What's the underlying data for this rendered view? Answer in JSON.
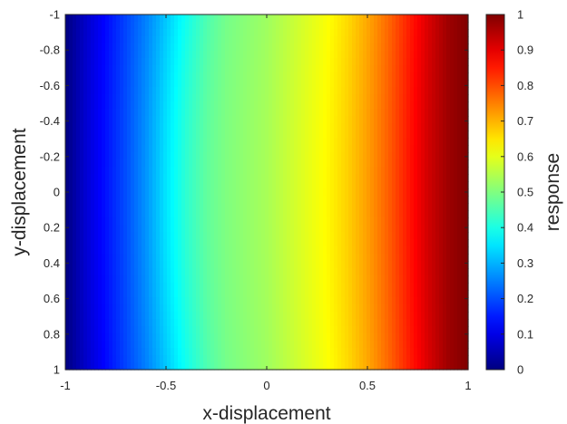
{
  "chart_data": {
    "type": "heatmap",
    "title": "",
    "xlabel": "x-displacement",
    "ylabel": "y-displacement",
    "colorbar_label": "response",
    "xlim": [
      -1,
      1
    ],
    "ylim": [
      -1,
      1
    ],
    "y_axis_direction": "reversed",
    "colormap": "jet",
    "clim": [
      0,
      1
    ],
    "x_ticks": [
      "-1",
      "-0.5",
      "0",
      "0.5",
      "1"
    ],
    "y_ticks": [
      "-1",
      "-0.8",
      "-0.6",
      "-0.4",
      "-0.2",
      "0",
      "0.2",
      "0.4",
      "0.6",
      "0.8",
      "1"
    ],
    "colorbar_ticks": [
      "0",
      "0.1",
      "0.2",
      "0.3",
      "0.4",
      "0.5",
      "0.6",
      "0.7",
      "0.8",
      "0.9",
      "1"
    ],
    "x_values": [
      -1.0,
      -0.9,
      -0.8,
      -0.7,
      -0.6,
      -0.5,
      -0.4,
      -0.3,
      -0.2,
      -0.1,
      0.0,
      0.1,
      0.2,
      0.3,
      0.4,
      0.5,
      0.6,
      0.7,
      0.8,
      0.9,
      1.0
    ],
    "response_along_x_at_y0": [
      0.0,
      0.08,
      0.14,
      0.2,
      0.27,
      0.35,
      0.42,
      0.47,
      0.5,
      0.52,
      0.54,
      0.57,
      0.6,
      0.63,
      0.67,
      0.72,
      0.78,
      0.85,
      0.92,
      0.97,
      1.0
    ],
    "response_along_x_at_y_edges": [
      0.0,
      0.07,
      0.13,
      0.19,
      0.25,
      0.32,
      0.39,
      0.45,
      0.49,
      0.51,
      0.53,
      0.56,
      0.59,
      0.62,
      0.66,
      0.71,
      0.77,
      0.84,
      0.91,
      0.97,
      1.0
    ],
    "grid": false
  }
}
